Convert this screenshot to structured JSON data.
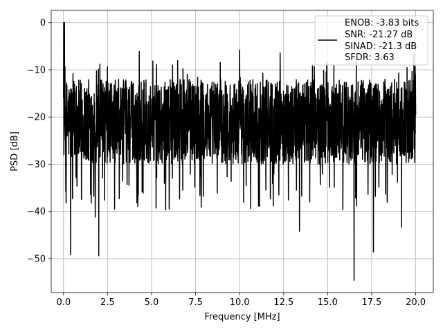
{
  "chart_data": {
    "type": "line",
    "title": "",
    "xlabel": "Frequency [MHz]",
    "ylabel": "PSD [dB]",
    "xlim": [
      -0.7,
      21.0
    ],
    "ylim": [
      -57.2,
      2.6
    ],
    "grid": true,
    "legend_position": "top-right",
    "x_ticks": [
      0.0,
      2.5,
      5.0,
      7.5,
      10.0,
      12.5,
      15.0,
      17.5,
      20.0
    ],
    "x_tick_labels": [
      "0.0",
      "2.5",
      "5.0",
      "7.5",
      "10.0",
      "12.5",
      "15.0",
      "17.5",
      "20.0"
    ],
    "y_ticks": [
      0,
      -10,
      -20,
      -30,
      -40,
      -50
    ],
    "y_tick_labels": [
      "0",
      "−10",
      "−20",
      "−30",
      "−40",
      "−50"
    ],
    "legend": [
      "ENOB: -3.83 bits",
      "SNR: -21.27 dB",
      "SINAD: -21.3 dB",
      "SFDR: 3.63"
    ],
    "series": [
      {
        "color": "#000000",
        "x_range": [
          0.0,
          20.0
        ],
        "noise_band": [
          -30,
          -12
        ],
        "peak_value": 0.0,
        "peak_x": 0.05,
        "notable_dips": [
          {
            "x": 0.4,
            "y": -49.2
          },
          {
            "x": 2.0,
            "y": -49.4
          },
          {
            "x": 1.8,
            "y": -41.2
          },
          {
            "x": 2.9,
            "y": -39.5
          },
          {
            "x": 5.8,
            "y": -39.7
          },
          {
            "x": 6.0,
            "y": -39.5
          },
          {
            "x": 13.4,
            "y": -44.2
          },
          {
            "x": 16.5,
            "y": -54.6
          },
          {
            "x": 17.6,
            "y": -48.6
          },
          {
            "x": 19.2,
            "y": -43.3
          }
        ],
        "notable_peaks": [
          {
            "x": 0.05,
            "y": 0.0
          },
          {
            "x": 10.0,
            "y": -5.8
          },
          {
            "x": 4.3,
            "y": -6.1
          },
          {
            "x": 12.3,
            "y": -6.4
          },
          {
            "x": 19.9,
            "y": -6.7
          }
        ]
      }
    ]
  }
}
